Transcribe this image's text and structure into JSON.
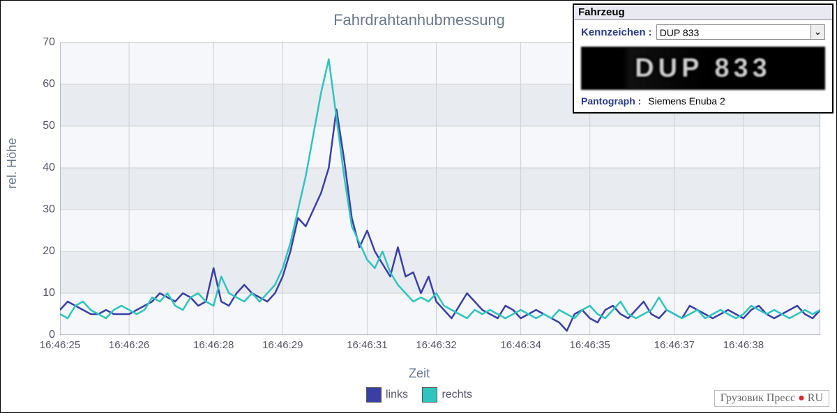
{
  "chart": {
    "type": "line",
    "title": "Fahrdrahtanhubmessung",
    "title_fontsize": 22,
    "xlabel": "Zeit",
    "ylabel": "rel. Höhe",
    "label_fontsize": 18,
    "background_color": "#f5f7fa",
    "grid_color": "#d0d0d0",
    "band_color": "#e8ebf0",
    "axis_color": "#888888",
    "tick_fontsize": 16,
    "ylim": [
      0,
      70
    ],
    "ytick_step": 10,
    "yticks": [
      0,
      10,
      20,
      30,
      40,
      50,
      60,
      70
    ],
    "xticks": [
      "16:46:25",
      "16:46:26",
      "16:46:28",
      "16:46:29",
      "16:46:31",
      "16:46:32",
      "16:46:34",
      "16:46:35",
      "16:46:37",
      "16:46:38"
    ],
    "xtick_positions": [
      0,
      9,
      20,
      29,
      40,
      49,
      60,
      69,
      80,
      89
    ],
    "n_points": 100,
    "line_width": 2.5,
    "series": [
      {
        "name": "links",
        "color": "#3a3fa6",
        "values": [
          6,
          8,
          7,
          6,
          5,
          5,
          6,
          5,
          5,
          5,
          6,
          7,
          8,
          10,
          9,
          8,
          10,
          9,
          7,
          8,
          16,
          8,
          7,
          10,
          12,
          10,
          9,
          8,
          10,
          14,
          20,
          28,
          26,
          30,
          34,
          40,
          54,
          42,
          28,
          21,
          25,
          20,
          17,
          14,
          21,
          14,
          15,
          10,
          14,
          8,
          6,
          4,
          7,
          10,
          8,
          6,
          5,
          4,
          7,
          6,
          4,
          5,
          6,
          5,
          4,
          3,
          1,
          5,
          6,
          4,
          3,
          6,
          7,
          5,
          4,
          6,
          8,
          5,
          4,
          6,
          5,
          4,
          7,
          6,
          5,
          4,
          5,
          6,
          5,
          4,
          6,
          7,
          5,
          4,
          5,
          6,
          7,
          5,
          4,
          6
        ]
      },
      {
        "name": "rechts",
        "color": "#2fc4bd",
        "values": [
          5,
          4,
          7,
          8,
          6,
          5,
          4,
          6,
          7,
          6,
          5,
          6,
          9,
          8,
          10,
          7,
          6,
          9,
          10,
          8,
          7,
          14,
          10,
          9,
          8,
          10,
          8,
          10,
          12,
          16,
          22,
          30,
          38,
          48,
          58,
          66,
          52,
          38,
          26,
          22,
          18,
          16,
          20,
          15,
          12,
          10,
          8,
          9,
          8,
          10,
          7,
          6,
          5,
          4,
          6,
          5,
          6,
          5,
          4,
          5,
          6,
          5,
          4,
          5,
          4,
          6,
          5,
          4,
          6,
          7,
          5,
          4,
          6,
          8,
          5,
          4,
          5,
          6,
          9,
          6,
          5,
          4,
          5,
          6,
          4,
          5,
          6,
          5,
          4,
          5,
          7,
          6,
          5,
          6,
          5,
          4,
          5,
          6,
          5,
          6
        ]
      }
    ],
    "legend": {
      "items": [
        "links",
        "rechts"
      ],
      "colors": [
        "#3a3fa6",
        "#2fc4bd"
      ]
    }
  },
  "panel": {
    "header": "Fahrzeug",
    "kennzeichen_label": "Kennzeichen :",
    "kennzeichen_value": "DUP 833",
    "plate_text": "DUP 833",
    "pantograph_label": "Pantograph :",
    "pantograph_value": "Siemens Enuba 2"
  },
  "watermark": {
    "text1": "Грузовик Пресс",
    "dot": "●",
    "text2": " RU"
  }
}
